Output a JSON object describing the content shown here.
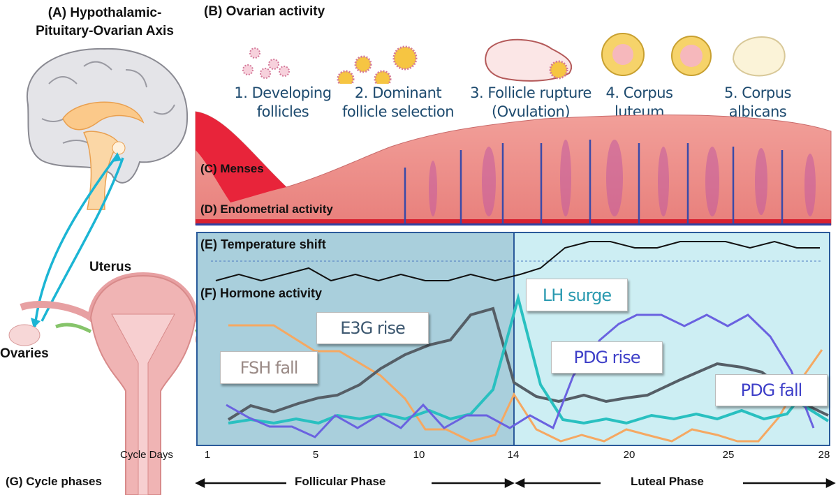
{
  "panel_a": {
    "title_line1": "(A) Hypothalamic-",
    "title_line2": "Pituitary-Ovarian Axis",
    "uterus_label": "Uterus",
    "ovaries_label": "Ovaries"
  },
  "panel_b": {
    "title": "(B) Ovarian activity",
    "stages": [
      {
        "line1": "1. Developing",
        "line2": "follicles"
      },
      {
        "line1": "2. Dominant",
        "line2": "follicle selection"
      },
      {
        "line1": "3. Follicle rupture",
        "line2": "(Ovulation)"
      },
      {
        "line1": "4. Corpus",
        "line2": "luteum"
      },
      {
        "line1": "5. Corpus",
        "line2": "albicans"
      }
    ]
  },
  "panel_c": {
    "label": "(C) Menses"
  },
  "panel_d": {
    "label": "(D) Endometrial activity"
  },
  "panel_e": {
    "label": "(E) Temperature shift"
  },
  "panel_f": {
    "label": "(F) Hormone activity",
    "callouts": {
      "fsh": "FSH fall",
      "e3g": "E3G rise",
      "lh": "LH surge",
      "pdg_rise": "PDG rise",
      "pdg_fall": "PDG fall"
    }
  },
  "axis": {
    "label": "Cycle Days",
    "ticks": [
      "1",
      "5",
      "10",
      "14",
      "20",
      "25",
      "28"
    ]
  },
  "panel_g": {
    "label": "(G) Cycle phases",
    "follicular": "Follicular Phase",
    "luteal": "Luteal Phase"
  },
  "colors": {
    "fsh": "#f5a862",
    "e3g": "#555e66",
    "lh": "#29c0c0",
    "pdg": "#6a62e0",
    "temperature": "#111111",
    "follicular_bg": "#a9cfdc",
    "luteal_bg": "#cdeef3",
    "arrow": "#1bb5d4",
    "callout_fsh": "#9a8a86",
    "callout_e3g": "#3d5870",
    "callout_lh": "#2a9ab0",
    "callout_pdg": "#3e3fc8"
  }
}
